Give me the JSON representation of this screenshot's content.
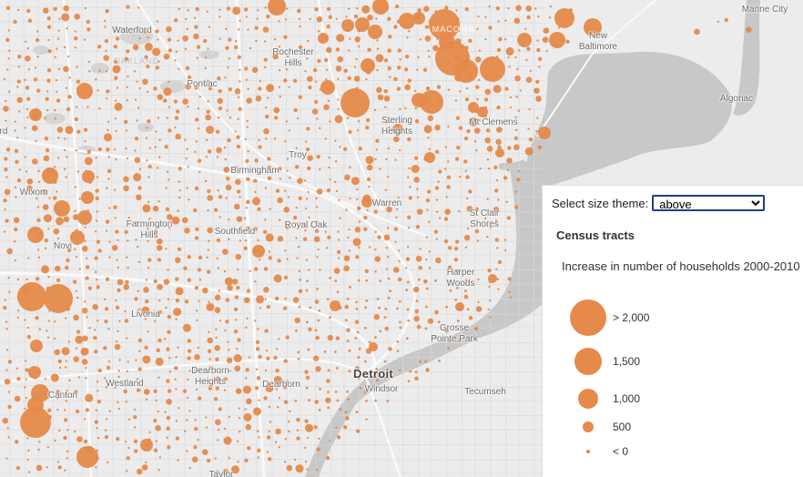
{
  "map": {
    "water_color": "#c8c8c8",
    "land_color": "#ececec",
    "dot_color": "#e58a4b",
    "place_labels": [
      {
        "id": "marine-city",
        "text": "Marine City"
      },
      {
        "id": "waterford",
        "text": "Waterford"
      },
      {
        "id": "oakland",
        "text": "OAKLAND"
      },
      {
        "id": "macomb",
        "text": "MACOMB"
      },
      {
        "id": "new-baltimore",
        "text": "New\nBaltimore"
      },
      {
        "id": "rochester-hills",
        "text": "Rochester\nHills"
      },
      {
        "id": "pontiac",
        "text": "Pontiac"
      },
      {
        "id": "algonac",
        "text": "Algonac"
      },
      {
        "id": "sterling-heights",
        "text": "Sterling\nHeights"
      },
      {
        "id": "mt-clemens",
        "text": "Mt Clemens"
      },
      {
        "id": "rd",
        "text": "rd"
      },
      {
        "id": "troy",
        "text": "Troy"
      },
      {
        "id": "birmingham",
        "text": "Birmingham"
      },
      {
        "id": "wixom",
        "text": "Wixom"
      },
      {
        "id": "warren",
        "text": "Warren"
      },
      {
        "id": "farmington-hills",
        "text": "Farmington\nHills"
      },
      {
        "id": "southfield",
        "text": "Southfield"
      },
      {
        "id": "royal-oak",
        "text": "Royal Oak"
      },
      {
        "id": "st-clair-shores",
        "text": "St Clair\nShores"
      },
      {
        "id": "novi",
        "text": "Novi"
      },
      {
        "id": "harper-woods",
        "text": "Harper\nWoods"
      },
      {
        "id": "livonia",
        "text": "Livonia"
      },
      {
        "id": "grosse-pointe-park",
        "text": "Grosse\nPointe Park"
      },
      {
        "id": "detroit",
        "text": "Detroit"
      },
      {
        "id": "westland",
        "text": "Westland"
      },
      {
        "id": "dearborn-heights",
        "text": "Dearborn\nHeights"
      },
      {
        "id": "dearborn",
        "text": "Dearborn"
      },
      {
        "id": "windsor",
        "text": "Windsor"
      },
      {
        "id": "tecumseh",
        "text": "Tecumseh"
      },
      {
        "id": "canton",
        "text": "Canton"
      },
      {
        "id": "taylor",
        "text": "Taylor"
      }
    ]
  },
  "panel": {
    "theme_label": "Select size theme:",
    "theme_selected": "above",
    "legend_title": "Census tracts",
    "legend_subtitle": "Increase in number of households 2000-2010",
    "legend_items": [
      {
        "label": "> 2,000"
      },
      {
        "label": "1,500"
      },
      {
        "label": "1,000"
      },
      {
        "label": "500"
      },
      {
        "label": "< 0"
      }
    ]
  }
}
